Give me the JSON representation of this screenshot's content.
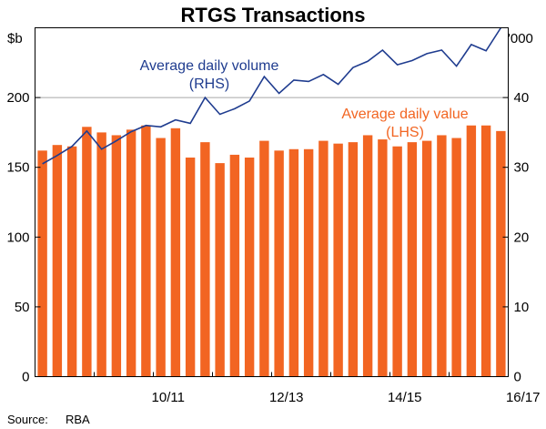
{
  "chart_data": {
    "type": "bar",
    "title": "RTGS Transactions",
    "y_left": {
      "unit": "$b",
      "ticks": [
        0,
        50,
        100,
        150,
        200
      ],
      "range": [
        0,
        250
      ]
    },
    "y_right": {
      "unit": "'000",
      "ticks": [
        0,
        10,
        20,
        30,
        40
      ],
      "range": [
        0,
        50
      ]
    },
    "x_tick_labels": [
      {
        "label": "10/11",
        "between": [
          8,
          9
        ]
      },
      {
        "label": "12/13",
        "between": [
          16,
          17
        ]
      },
      {
        "label": "14/15",
        "between": [
          24,
          25
        ]
      },
      {
        "label": "16/17",
        "between": [
          32,
          33
        ]
      }
    ],
    "gridlines_left": [
      200
    ],
    "series": [
      {
        "name_line1": "Average daily value",
        "name_line2": "(LHS)",
        "kind": "bar",
        "axis": "left",
        "color": "#f26522",
        "values": [
          162,
          166,
          165,
          179,
          175,
          173,
          177,
          180,
          171,
          178,
          157,
          168,
          153,
          159,
          157,
          169,
          162,
          163,
          163,
          169,
          167,
          168,
          173,
          170,
          165,
          168,
          169,
          173,
          171,
          180,
          180,
          176
        ]
      },
      {
        "name_line1": "Average daily volume",
        "name_line2": "(RHS)",
        "kind": "line",
        "axis": "right",
        "color": "#1f3c8f",
        "values": [
          30.5,
          31.7,
          33.0,
          35.2,
          32.6,
          33.8,
          35.1,
          36.0,
          35.8,
          36.8,
          36.3,
          40.0,
          37.6,
          38.4,
          39.5,
          43.0,
          40.6,
          42.5,
          42.3,
          43.3,
          41.9,
          44.3,
          45.2,
          46.8,
          44.7,
          45.3,
          46.3,
          46.8,
          44.5,
          47.6,
          46.7,
          50.0
        ]
      }
    ],
    "legend_placement": "inline annotations"
  },
  "source": {
    "label": "Source:",
    "value": "RBA"
  }
}
